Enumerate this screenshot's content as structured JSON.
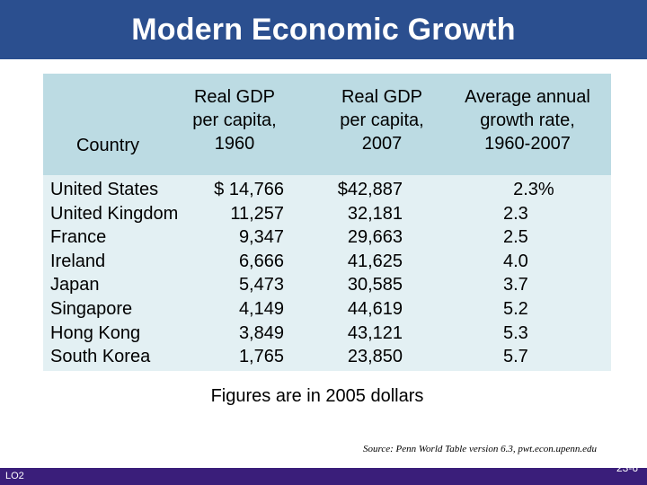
{
  "slide": {
    "title": "Modern Economic Growth",
    "footnote": "Figures are in 2005 dollars",
    "source": "Source: Penn World Table version 6.3, pwt.econ.upenn.edu",
    "lo_label": "LO2",
    "page_number": "23-6"
  },
  "table": {
    "headers": {
      "country": "Country",
      "gdp1960": [
        "Real GDP",
        "per capita,",
        "1960"
      ],
      "gdp2007": [
        "Real GDP",
        "per capita,",
        "2007"
      ],
      "growth": [
        "Average annual",
        "growth rate,",
        "1960-2007"
      ]
    },
    "rows": [
      {
        "country": "United States",
        "gdp1960": "$ 14,766",
        "gdp2007": "$42,887",
        "growth": "  2.3%"
      },
      {
        "country": "United Kingdom",
        "gdp1960": "11,257",
        "gdp2007": "32,181",
        "growth": "2.3"
      },
      {
        "country": "France",
        "gdp1960": "9,347",
        "gdp2007": "29,663",
        "growth": "2.5"
      },
      {
        "country": "Ireland",
        "gdp1960": "6,666",
        "gdp2007": "41,625",
        "growth": "4.0"
      },
      {
        "country": "Japan",
        "gdp1960": "5,473",
        "gdp2007": "30,585",
        "growth": "3.7"
      },
      {
        "country": "Singapore",
        "gdp1960": "4,149",
        "gdp2007": "44,619",
        "growth": "5.2"
      },
      {
        "country": "Hong Kong",
        "gdp1960": "3,849",
        "gdp2007": "43,121",
        "growth": "5.3"
      },
      {
        "country": "South Korea",
        "gdp1960": "1,765",
        "gdp2007": "23,850",
        "growth": "5.7"
      }
    ]
  },
  "colors": {
    "title_bar": "#2b4f8f",
    "header_bg": "#bcdbe3",
    "body_bg": "#e3f0f3",
    "bottom_bar": "#3a1e7a"
  }
}
